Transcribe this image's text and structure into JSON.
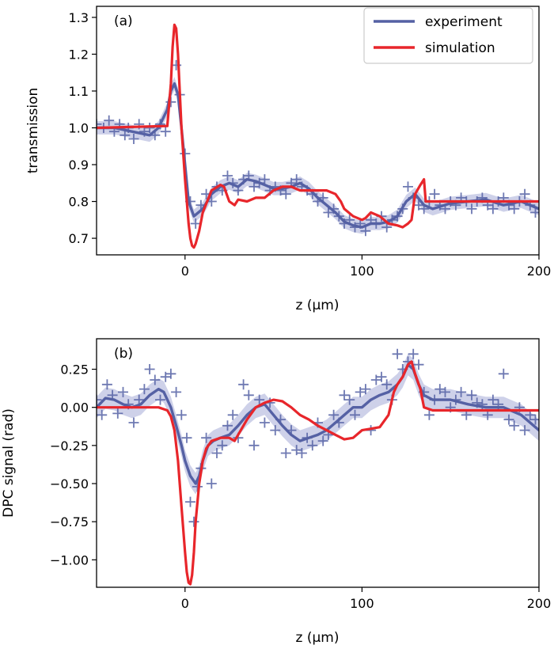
{
  "colors": {
    "experiment": "#5561a4",
    "experiment_band": "#c5c9e5",
    "simulation": "#e8262b"
  },
  "chart_data": [
    {
      "type": "line",
      "panel_label": "(a)",
      "xlabel": "z (μm)",
      "ylabel": "transmission",
      "xlim": [
        -50,
        200
      ],
      "ylim": [
        0.655,
        1.33
      ],
      "xticks": [
        0,
        100,
        200
      ],
      "yticks": [
        0.7,
        0.8,
        0.9,
        1.0,
        1.1,
        1.2,
        1.3
      ],
      "ytick_labels": [
        "0.7",
        "0.8",
        "0.9",
        "1.0",
        "1.1",
        "1.2",
        "1.3"
      ],
      "legend": {
        "position": "top-right",
        "entries": [
          "experiment",
          "simulation"
        ]
      },
      "series": [
        {
          "name": "experiment",
          "style": "line-with-band-and-markers",
          "x": [
            -50,
            -40,
            -30,
            -20,
            -15,
            -10,
            -8,
            -6,
            -4,
            -2,
            0,
            2,
            5,
            10,
            15,
            20,
            25,
            30,
            35,
            40,
            45,
            50,
            55,
            60,
            65,
            70,
            75,
            80,
            85,
            90,
            95,
            100,
            105,
            110,
            115,
            120,
            125,
            130,
            135,
            140,
            150,
            160,
            170,
            180,
            190,
            200
          ],
          "y": [
            1.0,
            1.0,
            0.99,
            0.98,
            1.0,
            1.05,
            1.1,
            1.12,
            1.09,
            1.0,
            0.9,
            0.8,
            0.76,
            0.78,
            0.82,
            0.84,
            0.85,
            0.84,
            0.86,
            0.855,
            0.845,
            0.835,
            0.835,
            0.84,
            0.85,
            0.835,
            0.81,
            0.79,
            0.77,
            0.745,
            0.735,
            0.73,
            0.74,
            0.74,
            0.745,
            0.76,
            0.8,
            0.82,
            0.79,
            0.78,
            0.795,
            0.8,
            0.805,
            0.79,
            0.8,
            0.78
          ],
          "band": 0.018
        },
        {
          "name": "simulation",
          "style": "line",
          "x": [
            -50,
            -10,
            -8,
            -7,
            -6,
            -5,
            -4,
            -3,
            -2,
            0,
            2,
            3,
            4,
            5,
            6,
            8,
            10,
            15,
            20,
            22,
            25,
            28,
            30,
            35,
            40,
            45,
            50,
            55,
            60,
            65,
            70,
            75,
            80,
            85,
            88,
            90,
            95,
            100,
            102,
            105,
            110,
            115,
            120,
            123,
            126,
            128,
            130,
            133,
            135,
            136,
            140,
            160,
            180,
            200
          ],
          "y": [
            1.0,
            1.005,
            1.12,
            1.22,
            1.28,
            1.27,
            1.2,
            1.1,
            1.0,
            0.86,
            0.74,
            0.7,
            0.68,
            0.675,
            0.685,
            0.72,
            0.77,
            0.83,
            0.845,
            0.84,
            0.8,
            0.79,
            0.805,
            0.8,
            0.81,
            0.81,
            0.83,
            0.84,
            0.84,
            0.83,
            0.83,
            0.83,
            0.83,
            0.82,
            0.8,
            0.78,
            0.76,
            0.75,
            0.755,
            0.77,
            0.76,
            0.74,
            0.735,
            0.73,
            0.74,
            0.75,
            0.82,
            0.845,
            0.86,
            0.8,
            0.8,
            0.8,
            0.8,
            0.8
          ]
        },
        {
          "name": "experiment data points",
          "style": "markers",
          "x": [
            -50,
            -46,
            -43,
            -40,
            -37,
            -34,
            -32,
            -29,
            -26,
            -23,
            -20,
            -17,
            -14,
            -11,
            -8,
            -5,
            -3,
            0,
            3,
            6,
            9,
            12,
            15,
            18,
            21,
            24,
            27,
            30,
            33,
            36,
            39,
            42,
            45,
            48,
            51,
            54,
            57,
            60,
            63,
            66,
            69,
            72,
            75,
            78,
            81,
            84,
            87,
            90,
            93,
            96,
            99,
            102,
            105,
            108,
            111,
            114,
            117,
            120,
            123,
            126,
            129,
            132,
            135,
            138,
            141,
            144,
            147,
            150,
            153,
            156,
            159,
            162,
            165,
            168,
            171,
            174,
            177,
            180,
            183,
            186,
            189,
            192,
            195,
            198
          ],
          "y": [
            1.01,
            1.0,
            1.02,
            0.99,
            1.01,
            0.98,
            1.0,
            0.97,
            1.01,
            0.99,
            1.0,
            0.98,
            1.01,
            0.99,
            1.07,
            1.17,
            1.09,
            0.93,
            0.8,
            0.74,
            0.79,
            0.82,
            0.8,
            0.84,
            0.83,
            0.87,
            0.85,
            0.83,
            0.86,
            0.87,
            0.84,
            0.85,
            0.86,
            0.83,
            0.84,
            0.83,
            0.82,
            0.85,
            0.86,
            0.84,
            0.83,
            0.82,
            0.8,
            0.81,
            0.77,
            0.78,
            0.76,
            0.74,
            0.75,
            0.73,
            0.74,
            0.72,
            0.75,
            0.74,
            0.76,
            0.73,
            0.75,
            0.76,
            0.78,
            0.84,
            0.81,
            0.79,
            0.78,
            0.8,
            0.82,
            0.79,
            0.78,
            0.8,
            0.79,
            0.81,
            0.8,
            0.78,
            0.8,
            0.81,
            0.79,
            0.78,
            0.8,
            0.81,
            0.79,
            0.78,
            0.8,
            0.82,
            0.79,
            0.77
          ]
        }
      ]
    },
    {
      "type": "line",
      "panel_label": "(b)",
      "xlabel": "z (μm)",
      "ylabel": "DPC signal (rad)",
      "xlim": [
        -50,
        200
      ],
      "ylim": [
        -1.18,
        0.45
      ],
      "xticks": [
        0,
        100,
        200
      ],
      "yticks": [
        -1.0,
        -0.75,
        -0.5,
        -0.25,
        0.0,
        0.25
      ],
      "ytick_labels": [
        "−1.00",
        "−0.75",
        "−0.50",
        "−0.25",
        "0.00",
        "0.25"
      ],
      "series": [
        {
          "name": "experiment",
          "style": "line-with-band-and-markers",
          "x": [
            -50,
            -45,
            -40,
            -35,
            -30,
            -25,
            -20,
            -15,
            -12,
            -8,
            -5,
            -2,
            0,
            3,
            6,
            8,
            10,
            13,
            16,
            20,
            25,
            30,
            35,
            40,
            45,
            50,
            55,
            60,
            65,
            70,
            75,
            80,
            85,
            90,
            95,
            100,
            105,
            110,
            115,
            120,
            123,
            126,
            129,
            132,
            135,
            140,
            150,
            160,
            170,
            180,
            190,
            200
          ],
          "y": [
            0.0,
            0.06,
            0.05,
            0.02,
            0.0,
            0.02,
            0.08,
            0.12,
            0.1,
            0.0,
            -0.12,
            -0.25,
            -0.35,
            -0.45,
            -0.5,
            -0.45,
            -0.35,
            -0.25,
            -0.22,
            -0.2,
            -0.18,
            -0.12,
            -0.05,
            0.0,
            0.02,
            -0.05,
            -0.12,
            -0.18,
            -0.22,
            -0.2,
            -0.18,
            -0.15,
            -0.1,
            -0.05,
            0.0,
            0.0,
            0.05,
            0.08,
            0.1,
            0.15,
            0.2,
            0.28,
            0.25,
            0.15,
            0.08,
            0.05,
            0.05,
            0.02,
            0.0,
            0.0,
            -0.05,
            -0.15
          ],
          "band": 0.07
        },
        {
          "name": "simulation",
          "style": "line",
          "x": [
            -50,
            -15,
            -10,
            -8,
            -6,
            -4,
            -2,
            0,
            1,
            2,
            3,
            4,
            5,
            6,
            8,
            10,
            12,
            15,
            20,
            25,
            28,
            30,
            35,
            40,
            45,
            50,
            55,
            60,
            65,
            70,
            75,
            80,
            85,
            90,
            95,
            100,
            105,
            110,
            115,
            118,
            120,
            123,
            126,
            128,
            130,
            133,
            135,
            140,
            160,
            180,
            200
          ],
          "y": [
            0.0,
            0.0,
            -0.02,
            -0.06,
            -0.15,
            -0.35,
            -0.65,
            -0.95,
            -1.08,
            -1.15,
            -1.16,
            -1.1,
            -0.95,
            -0.75,
            -0.5,
            -0.35,
            -0.27,
            -0.22,
            -0.2,
            -0.2,
            -0.22,
            -0.18,
            -0.08,
            0.0,
            0.03,
            0.05,
            0.04,
            0.0,
            -0.05,
            -0.08,
            -0.12,
            -0.15,
            -0.18,
            -0.21,
            -0.2,
            -0.15,
            -0.14,
            -0.13,
            -0.05,
            0.1,
            0.15,
            0.2,
            0.28,
            0.3,
            0.22,
            0.12,
            0.0,
            -0.02,
            -0.02,
            -0.02,
            -0.02
          ]
        },
        {
          "name": "experiment data points",
          "style": "markers",
          "x": [
            -50,
            -47,
            -44,
            -41,
            -38,
            -35,
            -32,
            -29,
            -26,
            -23,
            -20,
            -17,
            -14,
            -11,
            -8,
            -5,
            -2,
            1,
            3,
            5,
            7,
            9,
            12,
            15,
            18,
            21,
            24,
            27,
            30,
            33,
            36,
            39,
            42,
            45,
            48,
            51,
            54,
            57,
            60,
            63,
            66,
            69,
            72,
            75,
            78,
            81,
            84,
            87,
            90,
            93,
            96,
            99,
            102,
            105,
            108,
            111,
            114,
            117,
            120,
            123,
            126,
            129,
            132,
            135,
            138,
            141,
            144,
            147,
            150,
            153,
            156,
            159,
            162,
            165,
            168,
            171,
            174,
            177,
            180,
            183,
            186,
            189,
            192,
            195,
            198
          ],
          "y": [
            0.05,
            -0.05,
            0.15,
            0.08,
            -0.04,
            0.1,
            0.02,
            -0.1,
            0.05,
            0.12,
            0.25,
            0.18,
            0.05,
            0.2,
            0.22,
            0.1,
            -0.05,
            -0.2,
            -0.62,
            -0.75,
            -0.52,
            -0.4,
            -0.2,
            -0.5,
            -0.3,
            -0.25,
            -0.12,
            -0.05,
            -0.2,
            0.15,
            0.08,
            -0.25,
            0.05,
            -0.1,
            0.03,
            -0.15,
            -0.08,
            -0.3,
            -0.15,
            -0.28,
            -0.3,
            -0.2,
            -0.25,
            -0.1,
            -0.22,
            -0.18,
            -0.05,
            -0.1,
            0.08,
            0.05,
            -0.05,
            0.1,
            0.12,
            -0.15,
            0.18,
            0.2,
            0.15,
            0.05,
            0.35,
            0.25,
            0.3,
            0.35,
            0.28,
            0.1,
            -0.05,
            0.05,
            0.12,
            0.1,
            0.0,
            0.05,
            0.1,
            -0.05,
            0.08,
            0.03,
            0.02,
            -0.05,
            0.05,
            0.02,
            0.22,
            -0.08,
            -0.12,
            0.0,
            -0.15,
            -0.05,
            -0.08
          ]
        }
      ]
    }
  ]
}
